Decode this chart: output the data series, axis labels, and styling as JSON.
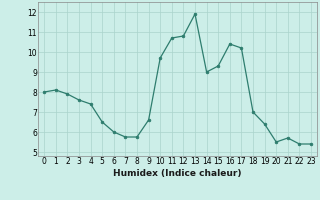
{
  "x": [
    0,
    1,
    2,
    3,
    4,
    5,
    6,
    7,
    8,
    9,
    10,
    11,
    12,
    13,
    14,
    15,
    16,
    17,
    18,
    19,
    20,
    21,
    22,
    23
  ],
  "y": [
    8.0,
    8.1,
    7.9,
    7.6,
    7.4,
    6.5,
    6.0,
    5.75,
    5.75,
    6.6,
    9.7,
    10.7,
    10.8,
    11.9,
    9.0,
    9.3,
    10.4,
    10.2,
    7.0,
    6.4,
    5.5,
    5.7,
    5.4,
    5.4
  ],
  "xlabel": "Humidex (Indice chaleur)",
  "xlim": [
    -0.5,
    23.5
  ],
  "ylim": [
    4.8,
    12.5
  ],
  "yticks": [
    5,
    6,
    7,
    8,
    9,
    10,
    11,
    12
  ],
  "xticks": [
    0,
    1,
    2,
    3,
    4,
    5,
    6,
    7,
    8,
    9,
    10,
    11,
    12,
    13,
    14,
    15,
    16,
    17,
    18,
    19,
    20,
    21,
    22,
    23
  ],
  "line_color": "#2e7d6e",
  "marker_color": "#2e7d6e",
  "bg_color": "#cceee8",
  "grid_color": "#aad4cc",
  "label_fontsize": 6.5,
  "tick_fontsize": 5.5
}
